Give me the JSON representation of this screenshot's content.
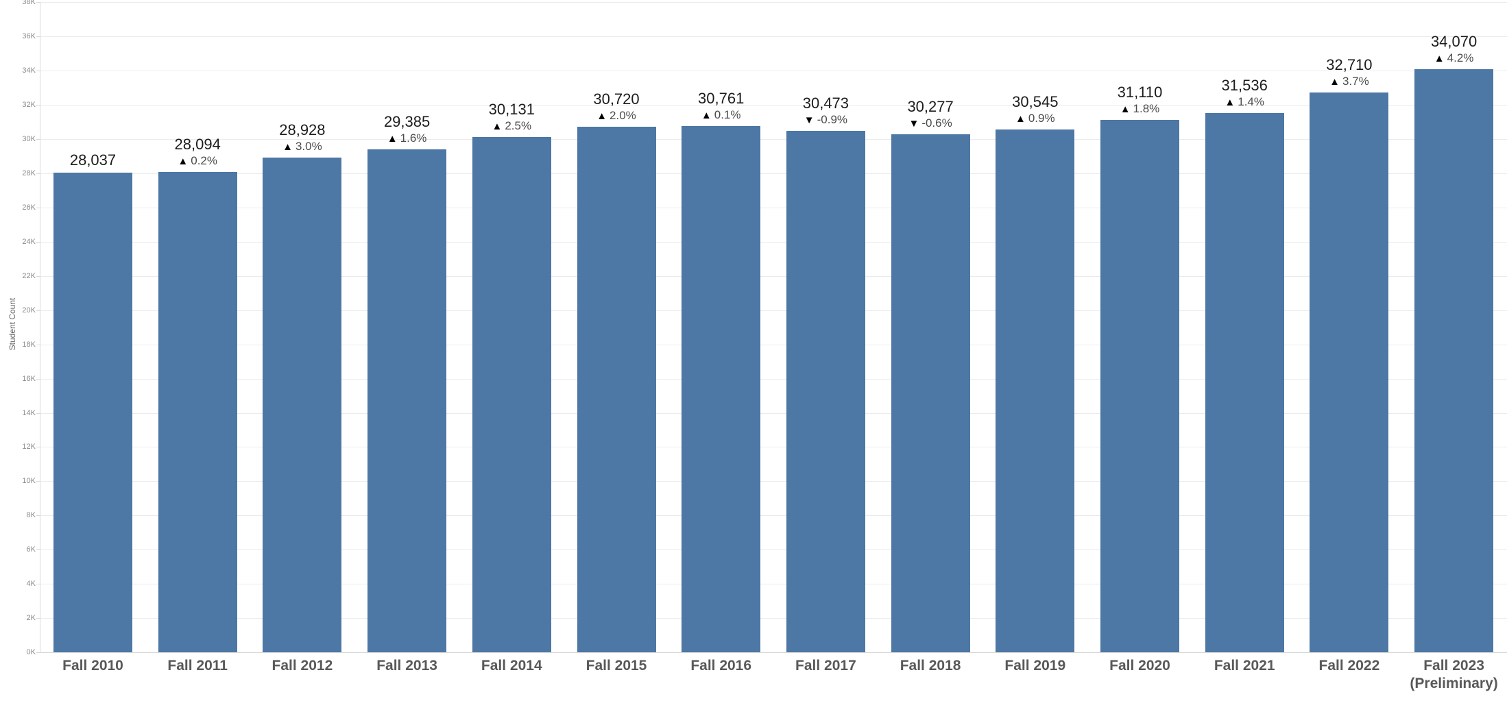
{
  "chart_data": {
    "type": "bar",
    "title": "",
    "xlabel": "",
    "ylabel": "Student Count",
    "ylim": [
      0,
      38000
    ],
    "ytick_step": 2000,
    "grid": true,
    "legend_position": "none",
    "yticks": [
      "0K",
      "2K",
      "4K",
      "6K",
      "8K",
      "10K",
      "12K",
      "14K",
      "16K",
      "18K",
      "20K",
      "22K",
      "24K",
      "26K",
      "28K",
      "30K",
      "32K",
      "34K",
      "36K",
      "38K"
    ],
    "bars": [
      {
        "category": "Fall 2010",
        "category_line2": "",
        "value": 28037,
        "value_label": "28,037",
        "change_label": "",
        "change_dir": ""
      },
      {
        "category": "Fall 2011",
        "category_line2": "",
        "value": 28094,
        "value_label": "28,094",
        "change_label": "0.2%",
        "change_dir": "up"
      },
      {
        "category": "Fall 2012",
        "category_line2": "",
        "value": 28928,
        "value_label": "28,928",
        "change_label": "3.0%",
        "change_dir": "up"
      },
      {
        "category": "Fall 2013",
        "category_line2": "",
        "value": 29385,
        "value_label": "29,385",
        "change_label": "1.6%",
        "change_dir": "up"
      },
      {
        "category": "Fall 2014",
        "category_line2": "",
        "value": 30131,
        "value_label": "30,131",
        "change_label": "2.5%",
        "change_dir": "up"
      },
      {
        "category": "Fall 2015",
        "category_line2": "",
        "value": 30720,
        "value_label": "30,720",
        "change_label": "2.0%",
        "change_dir": "up"
      },
      {
        "category": "Fall 2016",
        "category_line2": "",
        "value": 30761,
        "value_label": "30,761",
        "change_label": "0.1%",
        "change_dir": "up"
      },
      {
        "category": "Fall 2017",
        "category_line2": "",
        "value": 30473,
        "value_label": "30,473",
        "change_label": "-0.9%",
        "change_dir": "down"
      },
      {
        "category": "Fall 2018",
        "category_line2": "",
        "value": 30277,
        "value_label": "30,277",
        "change_label": "-0.6%",
        "change_dir": "down"
      },
      {
        "category": "Fall 2019",
        "category_line2": "",
        "value": 30545,
        "value_label": "30,545",
        "change_label": "0.9%",
        "change_dir": "up"
      },
      {
        "category": "Fall 2020",
        "category_line2": "",
        "value": 31110,
        "value_label": "31,110",
        "change_label": "1.8%",
        "change_dir": "up"
      },
      {
        "category": "Fall 2021",
        "category_line2": "",
        "value": 31536,
        "value_label": "31,536",
        "change_label": "1.4%",
        "change_dir": "up"
      },
      {
        "category": "Fall 2022",
        "category_line2": "",
        "value": 32710,
        "value_label": "32,710",
        "change_label": "3.7%",
        "change_dir": "up"
      },
      {
        "category": "Fall 2023",
        "category_line2": "(Preliminary)",
        "value": 34070,
        "value_label": "34,070",
        "change_label": "4.2%",
        "change_dir": "up"
      }
    ]
  },
  "icons": {
    "up_triangle": "▲",
    "down_triangle": "▼"
  },
  "colors": {
    "bar": "#4d77a4",
    "gridline": "#ebebeb",
    "axis_line": "#d8d8d8",
    "tick_label": "#8a8a8a",
    "x_label": "#595959",
    "value_label": "#1c1c1c",
    "change_label": "#4a4a4a",
    "axis_title": "#666666",
    "background": "#ffffff"
  }
}
